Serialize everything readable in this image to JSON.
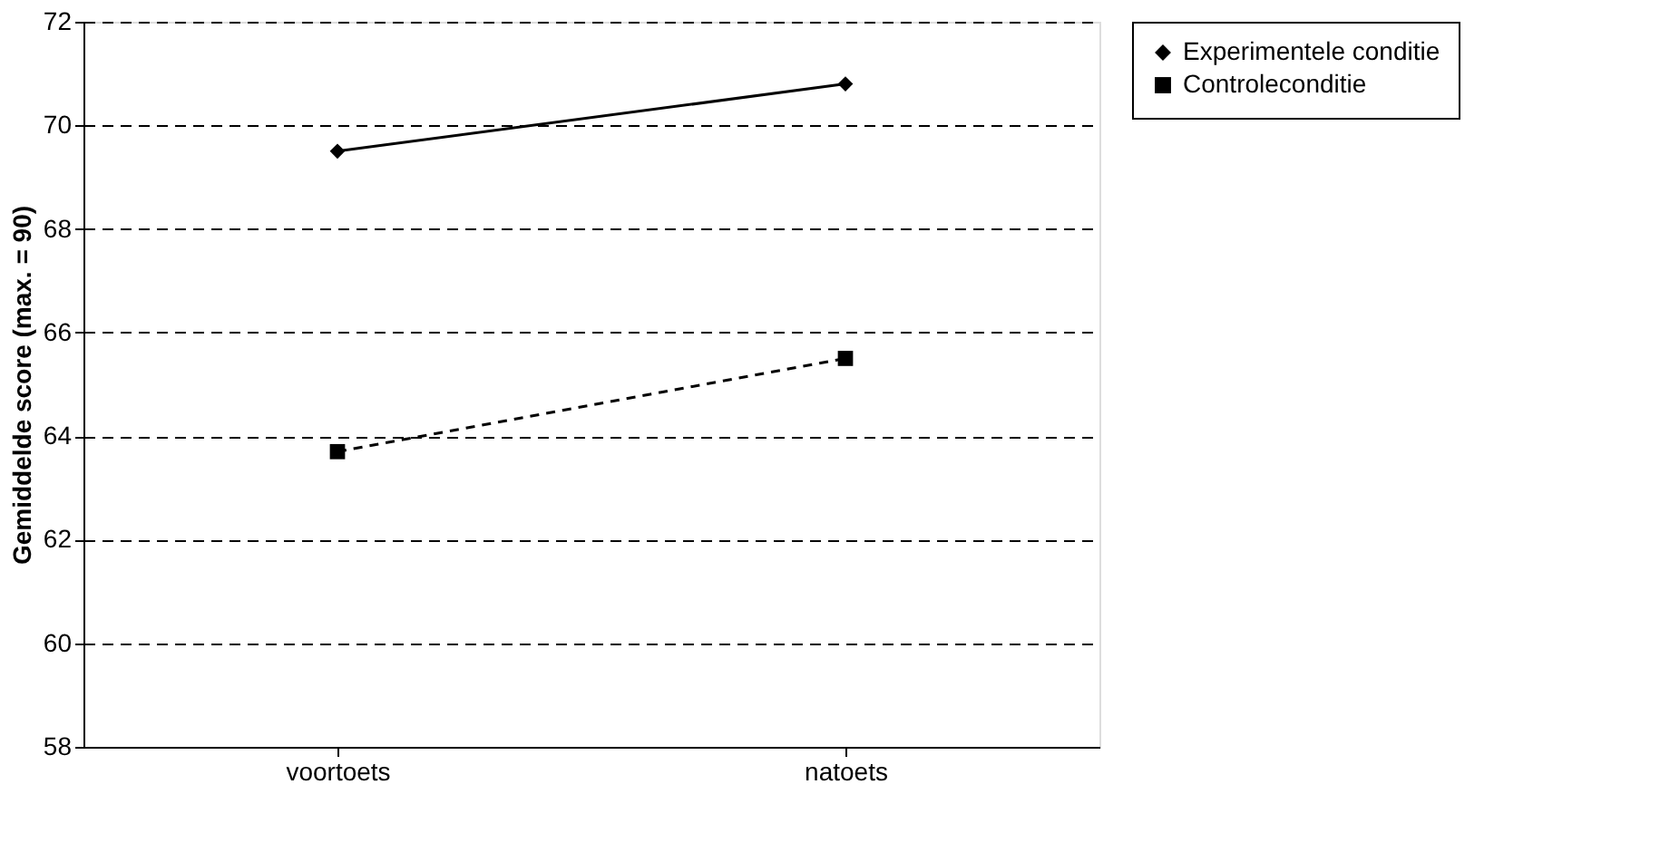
{
  "chart_data": {
    "type": "line",
    "ylabel": "Gemiddelde score (max. = 90)",
    "categories": [
      "voortoets",
      "natoets"
    ],
    "series": [
      {
        "name": "Experimentele conditie",
        "color": "#000000",
        "marker": "diamond",
        "line_style": "solid",
        "values": [
          69.5,
          70.8
        ]
      },
      {
        "name": "Controleconditie",
        "color": "#000000",
        "marker": "square",
        "line_style": "dashed",
        "values": [
          63.7,
          65.5
        ]
      }
    ],
    "ylim": [
      58,
      72
    ],
    "yticks": [
      58,
      60,
      62,
      64,
      66,
      68,
      70,
      72
    ],
    "grid": "y",
    "legend": "right"
  }
}
